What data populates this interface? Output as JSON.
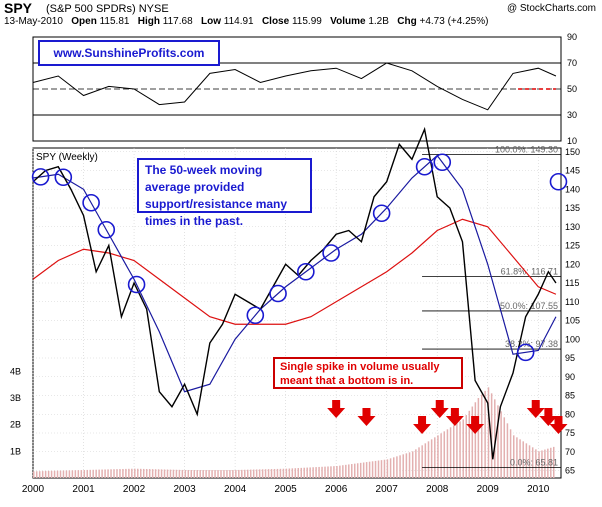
{
  "header": {
    "symbol": "SPY",
    "description": "(S&P 500 SPDRs) NYSE",
    "credit": "@ StockCharts.com",
    "date": "13-May-2010",
    "open_label": "Open",
    "open": "115.81",
    "high_label": "High",
    "high": "117.68",
    "low_label": "Low",
    "low": "114.91",
    "close_label": "Close",
    "close": "115.99",
    "volume_label": "Volume",
    "volume": "1.2B",
    "chg_label": "Chg",
    "chg": "+4.73 (+4.25%)"
  },
  "website": "www.SunshineProfits.com",
  "notes": {
    "ma_note": "The 50-week moving average provided support/resistance many times in the past.",
    "volume_note": "Single spike in volume usually meant that a bottom is in."
  },
  "colors": {
    "price_up": "#000000",
    "price_down": "#cc0000",
    "ma50": "#1a1aa0",
    "ma200": "#dd1111",
    "annotation_blue": "#1a1ad0",
    "arrow_red": "#e00000"
  },
  "chart_data": [
    {
      "type": "line",
      "title": "",
      "ylim": [
        10,
        90
      ],
      "yticks": [
        10,
        30,
        50,
        70,
        90
      ],
      "reference_lines": [
        30,
        50,
        70
      ],
      "x": [
        2000.0,
        2000.5,
        2001.0,
        2001.5,
        2002.0,
        2002.5,
        2003.0,
        2003.5,
        2004.0,
        2004.5,
        2005.0,
        2005.5,
        2006.0,
        2006.5,
        2007.0,
        2007.5,
        2008.0,
        2008.5,
        2009.0,
        2009.5,
        2010.0,
        2010.35
      ],
      "values": [
        55,
        60,
        45,
        52,
        50,
        38,
        40,
        62,
        65,
        55,
        60,
        64,
        66,
        58,
        70,
        64,
        52,
        42,
        34,
        62,
        66,
        60
      ]
    },
    {
      "type": "line",
      "title": "SPY (Weekly)",
      "xticks": [
        "2000",
        "2001",
        "2002",
        "2003",
        "2004",
        "2005",
        "2006",
        "2007",
        "2008",
        "2009",
        "2010"
      ],
      "yticks": [
        65,
        70,
        75,
        80,
        85,
        90,
        95,
        100,
        105,
        110,
        115,
        120,
        125,
        130,
        135,
        140,
        145,
        150
      ],
      "ylim": [
        63,
        151
      ],
      "volume_ticks": [
        "1B",
        "2B",
        "3B",
        "4B"
      ],
      "fibonacci": [
        {
          "label": "100.0%: 149.30",
          "value": 149.3
        },
        {
          "label": "61.8%: 116.71",
          "value": 116.71
        },
        {
          "label": "50.0%: 107.55",
          "value": 107.55
        },
        {
          "label": "38.2%: 97.38",
          "value": 97.38
        },
        {
          "label": "0.0%: 65.81",
          "value": 65.81
        }
      ],
      "series": [
        {
          "x": [
            2000.0,
            2000.25,
            2000.5,
            2000.75,
            2001.0,
            2001.25,
            2001.5,
            2001.75,
            2002.0,
            2002.25,
            2002.5,
            2002.75,
            2003.0,
            2003.25,
            2003.5,
            2003.75,
            2004.0,
            2004.25,
            2004.5,
            2004.75,
            2005.0,
            2005.25,
            2005.5,
            2005.75,
            2006.0,
            2006.25,
            2006.5,
            2006.75,
            2007.0,
            2007.25,
            2007.5,
            2007.75,
            2008.0,
            2008.25,
            2008.5,
            2008.75,
            2009.0,
            2009.1,
            2009.25,
            2009.5,
            2009.75,
            2010.0,
            2010.2,
            2010.35
          ],
          "values": [
            142,
            145,
            146,
            140,
            133,
            118,
            125,
            106,
            115,
            108,
            86,
            82,
            88,
            80,
            99,
            104,
            112,
            110,
            108,
            114,
            120,
            117,
            121,
            124,
            128,
            129,
            126,
            138,
            142,
            152,
            148,
            156,
            138,
            135,
            126,
            89,
            83,
            68,
            82,
            91,
            106,
            112,
            118,
            115
          ]
        },
        {
          "x": [
            2000.0,
            2000.5,
            2001.0,
            2001.5,
            2002.0,
            2002.5,
            2003.0,
            2003.5,
            2004.0,
            2004.5,
            2005.0,
            2005.5,
            2006.0,
            2006.5,
            2007.0,
            2007.5,
            2008.0,
            2008.5,
            2009.0,
            2009.5,
            2010.0,
            2010.35
          ],
          "values": [
            143,
            144,
            140,
            128,
            116,
            102,
            86,
            88,
            100,
            108,
            114,
            119,
            124,
            128,
            135,
            143,
            149,
            140,
            120,
            96,
            97,
            106
          ]
        },
        {
          "x": [
            2000.0,
            2000.5,
            2001.0,
            2001.5,
            2002.0,
            2002.5,
            2003.0,
            2003.5,
            2004.0,
            2004.5,
            2005.0,
            2005.5,
            2006.0,
            2006.5,
            2007.0,
            2007.5,
            2008.0,
            2008.5,
            2009.0,
            2009.5,
            2010.0,
            2010.35
          ],
          "values": [
            116,
            121,
            124,
            123,
            121,
            116,
            111,
            106,
            104,
            104,
            104,
            106,
            110,
            114,
            118,
            123,
            129,
            132,
            130,
            122,
            114,
            112
          ]
        }
      ],
      "volume": {
        "x": [
          2000.0,
          2001.0,
          2002.0,
          2003.0,
          2004.0,
          2005.0,
          2006.0,
          2007.0,
          2007.5,
          2008.0,
          2008.5,
          2008.8,
          2009.0,
          2009.5,
          2010.0,
          2010.35
        ],
        "values": [
          0.25,
          0.3,
          0.35,
          0.3,
          0.3,
          0.35,
          0.45,
          0.7,
          1.0,
          1.6,
          2.2,
          3.0,
          3.4,
          1.6,
          1.0,
          1.2
        ]
      },
      "circles_at": [
        2000.15,
        2000.6,
        2001.15,
        2001.45,
        2002.05,
        2004.4,
        2004.85,
        2005.4,
        2005.9,
        2006.9,
        2007.75,
        2008.1,
        2009.75,
        2010.4
      ],
      "volume_arrows_at": [
        2006.0,
        2006.6,
        2007.7,
        2008.05,
        2008.35,
        2008.75,
        2009.95,
        2010.2,
        2010.4
      ]
    }
  ]
}
